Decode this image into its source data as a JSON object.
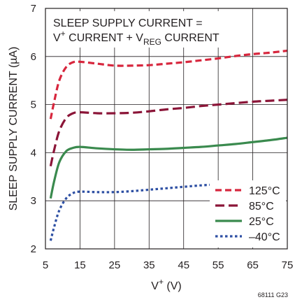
{
  "chart_data": {
    "type": "line",
    "title": "",
    "annotation": {
      "line1": "SLEEP SUPPLY CURRENT =",
      "line2_parts": [
        "V",
        "+",
        " CURRENT + V",
        "REG",
        " CURRENT"
      ]
    },
    "xlabel_parts": [
      "V",
      "+",
      " (V)"
    ],
    "ylabel": "SLEEP SUPPLY CURRENT (µA)",
    "xlim": [
      5,
      75
    ],
    "ylim": [
      2,
      7
    ],
    "x_ticks": [
      "5",
      "15",
      "25",
      "35",
      "45",
      "55",
      "65",
      "75"
    ],
    "y_ticks": [
      "2",
      "3",
      "4",
      "5",
      "6",
      "7"
    ],
    "grid": true,
    "legend_position": "bottom-right",
    "figure_code": "68111 G23",
    "series": [
      {
        "name": "125°C",
        "color": "#d7263d",
        "dash": "dashed",
        "points": [
          [
            6.5,
            4.7
          ],
          [
            7.5,
            5.05
          ],
          [
            9,
            5.5
          ],
          [
            11,
            5.78
          ],
          [
            13,
            5.88
          ],
          [
            15,
            5.89
          ],
          [
            20,
            5.85
          ],
          [
            25,
            5.81
          ],
          [
            30,
            5.81
          ],
          [
            35,
            5.82
          ],
          [
            40,
            5.85
          ],
          [
            45,
            5.88
          ],
          [
            50,
            5.92
          ],
          [
            55,
            5.96
          ],
          [
            60,
            6.01
          ],
          [
            65,
            6.05
          ],
          [
            70,
            6.08
          ],
          [
            75,
            6.12
          ]
        ]
      },
      {
        "name": "85°C",
        "color": "#8b1538",
        "dash": "long-dashed",
        "points": [
          [
            6.5,
            3.72
          ],
          [
            7.5,
            4.05
          ],
          [
            9,
            4.45
          ],
          [
            11,
            4.72
          ],
          [
            13,
            4.82
          ],
          [
            15,
            4.84
          ],
          [
            20,
            4.82
          ],
          [
            25,
            4.82
          ],
          [
            30,
            4.83
          ],
          [
            35,
            4.86
          ],
          [
            40,
            4.9
          ],
          [
            45,
            4.93
          ],
          [
            50,
            4.97
          ],
          [
            55,
            5.0
          ],
          [
            60,
            5.03
          ],
          [
            65,
            5.06
          ],
          [
            70,
            5.08
          ],
          [
            75,
            5.1
          ]
        ]
      },
      {
        "name": "25°C",
        "color": "#3a8a4e",
        "dash": "solid",
        "points": [
          [
            6.5,
            3.05
          ],
          [
            7.5,
            3.4
          ],
          [
            9,
            3.8
          ],
          [
            11,
            4.03
          ],
          [
            13,
            4.1
          ],
          [
            15,
            4.12
          ],
          [
            20,
            4.09
          ],
          [
            25,
            4.07
          ],
          [
            30,
            4.06
          ],
          [
            35,
            4.07
          ],
          [
            40,
            4.08
          ],
          [
            45,
            4.1
          ],
          [
            50,
            4.12
          ],
          [
            55,
            4.15
          ],
          [
            60,
            4.18
          ],
          [
            65,
            4.22
          ],
          [
            70,
            4.26
          ],
          [
            75,
            4.31
          ]
        ]
      },
      {
        "name": "–40°C",
        "color": "#2d4fa3",
        "dash": "dotted",
        "points": [
          [
            6.5,
            2.17
          ],
          [
            7.5,
            2.45
          ],
          [
            9,
            2.8
          ],
          [
            11,
            3.05
          ],
          [
            13,
            3.16
          ],
          [
            15,
            3.19
          ],
          [
            20,
            3.18
          ],
          [
            25,
            3.18
          ],
          [
            30,
            3.2
          ],
          [
            35,
            3.23
          ],
          [
            40,
            3.26
          ],
          [
            45,
            3.29
          ],
          [
            50,
            3.32
          ],
          [
            55,
            3.34
          ],
          [
            60,
            3.35
          ],
          [
            65,
            3.36
          ],
          [
            70,
            3.36
          ],
          [
            75,
            3.36
          ]
        ]
      }
    ]
  }
}
